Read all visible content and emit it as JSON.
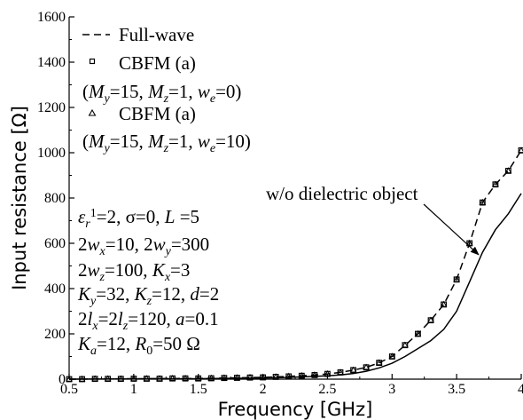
{
  "chart_data": {
    "type": "line",
    "xlabel": "Frequency [GHz]",
    "ylabel": "Input resistance [Ω]",
    "xlim": [
      0.5,
      4.0
    ],
    "ylim": [
      0,
      1600
    ],
    "x_ticks": [
      0.5,
      1,
      1.5,
      2,
      2.5,
      3,
      3.5,
      4
    ],
    "x_tick_labels": [
      "0.5",
      "1",
      "1.5",
      "2",
      "2.5",
      "3",
      "3.5",
      "4"
    ],
    "y_ticks": [
      0,
      200,
      400,
      600,
      800,
      1000,
      1200,
      1400,
      1600
    ],
    "y_tick_labels": [
      "0",
      "200",
      "400",
      "600",
      "800",
      "1000",
      "1200",
      "1400",
      "1600"
    ],
    "grid": false,
    "legend_position": "top-left",
    "series": [
      {
        "name": "Full-wave",
        "style": "dashed",
        "color": "#000000",
        "x": [
          0.5,
          1.0,
          1.5,
          2.0,
          2.2,
          2.4,
          2.5,
          2.6,
          2.7,
          2.8,
          2.9,
          3.0,
          3.1,
          3.2,
          3.3,
          3.4,
          3.5,
          3.6,
          3.7,
          3.8,
          3.9,
          4.0
        ],
        "y": [
          0,
          2,
          3,
          8,
          12,
          18,
          23,
          30,
          40,
          52,
          72,
          100,
          150,
          200,
          260,
          330,
          440,
          600,
          780,
          860,
          920,
          1010
        ]
      },
      {
        "name": "CBFM (a)",
        "marker": "square",
        "color": "#000000",
        "x": [
          0.5,
          0.6,
          0.7,
          0.8,
          0.9,
          1.0,
          1.1,
          1.2,
          1.3,
          1.4,
          1.5,
          1.6,
          1.7,
          1.8,
          1.9,
          2.0,
          2.1,
          2.2,
          2.3,
          2.4,
          2.5,
          2.6,
          2.7,
          2.8,
          2.9,
          3.0,
          3.1,
          3.2,
          3.3,
          3.4,
          3.5,
          3.6,
          3.7,
          3.8,
          3.9,
          4.0
        ],
        "y": [
          0,
          0,
          1,
          1,
          1,
          2,
          2,
          2,
          3,
          3,
          3,
          4,
          5,
          6,
          7,
          8,
          10,
          12,
          15,
          18,
          23,
          30,
          40,
          52,
          72,
          100,
          150,
          200,
          260,
          330,
          440,
          600,
          780,
          860,
          920,
          1010
        ]
      },
      {
        "name": "CBFM (a)",
        "marker": "triangle",
        "color": "#000000",
        "x": [
          0.5,
          0.6,
          0.7,
          0.8,
          0.9,
          1.0,
          1.1,
          1.2,
          1.3,
          1.4,
          1.5,
          1.6,
          1.7,
          1.8,
          1.9,
          2.0,
          2.1,
          2.2,
          2.3,
          2.4,
          2.5,
          2.6,
          2.7,
          2.8,
          2.9,
          3.0,
          3.1,
          3.2,
          3.3,
          3.4,
          3.5,
          3.6,
          3.7,
          3.8,
          3.9,
          4.0
        ],
        "y": [
          0,
          0,
          1,
          1,
          1,
          2,
          2,
          2,
          3,
          3,
          3,
          4,
          5,
          6,
          7,
          8,
          10,
          12,
          15,
          18,
          23,
          30,
          40,
          52,
          72,
          100,
          150,
          200,
          260,
          330,
          440,
          600,
          780,
          860,
          920,
          1010
        ]
      },
      {
        "name": "w/o dielectric object",
        "style": "solid",
        "color": "#000000",
        "x": [
          0.5,
          1.0,
          1.5,
          2.0,
          2.2,
          2.4,
          2.5,
          2.6,
          2.7,
          2.8,
          2.9,
          3.0,
          3.1,
          3.2,
          3.3,
          3.4,
          3.5,
          3.6,
          3.7,
          3.8,
          3.9,
          4.0
        ],
        "y": [
          0,
          1,
          2,
          5,
          8,
          12,
          15,
          19,
          25,
          35,
          50,
          70,
          100,
          135,
          170,
          220,
          300,
          430,
          560,
          660,
          730,
          820
        ]
      }
    ],
    "legend": [
      {
        "marker": "dash",
        "label": "Full-wave"
      },
      {
        "marker": "square",
        "label": "CBFM (a)",
        "params": "(My=15, Mz=1, we=0)"
      },
      {
        "marker": "triangle",
        "label": "CBFM (a)",
        "params": "(My=15, Mz=1, we=10)"
      }
    ],
    "annotation": {
      "text": "w/o dielectric object",
      "arrow_to": {
        "x": 3.67,
        "y": 550
      }
    },
    "parameters": [
      "εr1=2, σ=0, L =5",
      "2wx=10, 2wy=300",
      "2wz=100, Kx=3",
      "Ky=32, Kz=12, d=2",
      "2lx=2lz=120, a=0.1",
      "Ka=12, R0=50 Ω"
    ]
  }
}
